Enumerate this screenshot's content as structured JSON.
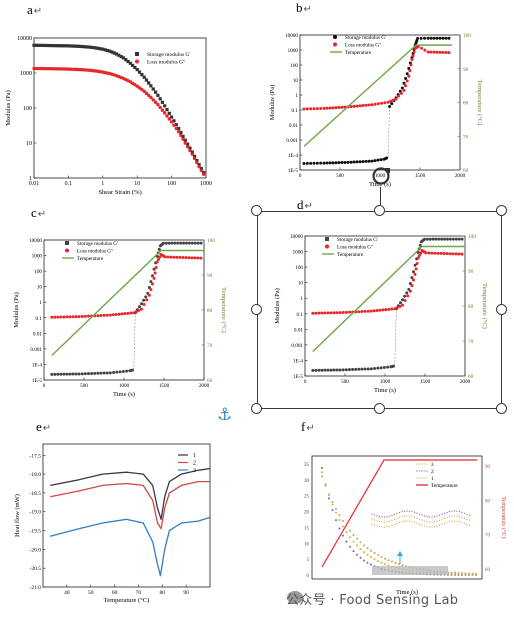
{
  "panels": {
    "a": {
      "label": "a"
    },
    "b": {
      "label": "b"
    },
    "c": {
      "label": "c"
    },
    "d": {
      "label": "d"
    },
    "e": {
      "label": "e"
    },
    "f": {
      "label": "f"
    }
  },
  "return_mark": "↵",
  "watermark": "公众号 · Food Sensing Lab",
  "chart_data": [
    {
      "id": "a",
      "type": "scatter",
      "xlabel": "Shear Strain (%)",
      "ylabel": "Modulus (Pa)",
      "xscale": "log",
      "yscale": "log",
      "xlim": [
        0.01,
        1000
      ],
      "ylim": [
        1,
        10000
      ],
      "xticks": [
        "0.01",
        "0.1",
        "1",
        "10",
        "100",
        "1000"
      ],
      "yticks": [
        "1",
        "10",
        "100",
        "1000",
        "10000"
      ],
      "legend": "top-right",
      "series": [
        {
          "name": "Storage modulus G'",
          "color": "#333333",
          "marker": "square",
          "points": [
            [
              0.01,
              6200
            ],
            [
              0.016,
              6150
            ],
            [
              0.025,
              6100
            ],
            [
              0.04,
              6050
            ],
            [
              0.063,
              6000
            ],
            [
              0.1,
              5950
            ],
            [
              0.16,
              5850
            ],
            [
              0.25,
              5700
            ],
            [
              0.4,
              5500
            ],
            [
              0.63,
              5200
            ],
            [
              1,
              4800
            ],
            [
              1.6,
              4200
            ],
            [
              2.5,
              3500
            ],
            [
              4,
              2700
            ],
            [
              6.3,
              1900
            ],
            [
              10,
              1250
            ],
            [
              16,
              760
            ],
            [
              25,
              430
            ],
            [
              40,
              230
            ],
            [
              63,
              115
            ],
            [
              100,
              55
            ],
            [
              160,
              26
            ],
            [
              250,
              12
            ],
            [
              400,
              5.5
            ],
            [
              630,
              2.4
            ],
            [
              1000,
              1.1
            ]
          ]
        },
        {
          "name": "Loss modulus G''",
          "color": "#e8262b",
          "marker": "circle",
          "points": [
            [
              0.01,
              1350
            ],
            [
              0.016,
              1340
            ],
            [
              0.025,
              1330
            ],
            [
              0.04,
              1320
            ],
            [
              0.063,
              1310
            ],
            [
              0.1,
              1290
            ],
            [
              0.16,
              1270
            ],
            [
              0.25,
              1240
            ],
            [
              0.4,
              1200
            ],
            [
              0.63,
              1140
            ],
            [
              1,
              1060
            ],
            [
              1.6,
              960
            ],
            [
              2.5,
              840
            ],
            [
              4,
              700
            ],
            [
              6.3,
              560
            ],
            [
              10,
              420
            ],
            [
              16,
              300
            ],
            [
              25,
              200
            ],
            [
              40,
              125
            ],
            [
              63,
              72
            ],
            [
              100,
              40
            ],
            [
              160,
              21
            ],
            [
              250,
              10
            ],
            [
              400,
              4.8
            ],
            [
              630,
              2.1
            ],
            [
              1000,
              1
            ]
          ]
        }
      ]
    },
    {
      "id": "b",
      "type": "line",
      "xlabel": "Time (s)",
      "ylabel": "Modulus (Pa)",
      "y2label": "Temperature (°C)",
      "xlim": [
        0,
        2000
      ],
      "xticks": [
        "0",
        "500",
        "1000",
        "1500",
        "2000"
      ],
      "yticks": [
        "1E-5",
        "1E-4",
        "0.001",
        "0.01",
        "0.1",
        "1",
        "10",
        "100",
        "1000",
        "10000"
      ],
      "ytick_display": [
        "1E-5",
        "1E-4",
        "0.001",
        "0.01",
        "0.1",
        "1",
        "10",
        "100",
        "1000",
        "10000"
      ],
      "y2ticks": [
        "60",
        "70",
        "80",
        "90",
        "100"
      ],
      "y2lim": [
        60,
        100
      ],
      "legend": "top-left",
      "series": [
        {
          "name": "Storage modulus G'",
          "color": "#111111",
          "points": [
            [
              50,
              1.5e-05
            ],
            [
              300,
              1.6e-05
            ],
            [
              600,
              1.8e-05
            ],
            [
              900,
              2.2e-05
            ],
            [
              1050,
              3e-05
            ],
            [
              1100,
              4e-05
            ],
            [
              1120,
              0.15
            ],
            [
              1200,
              0.6
            ],
            [
              1280,
              3
            ],
            [
              1340,
              30
            ],
            [
              1400,
              400
            ],
            [
              1440,
              3000
            ],
            [
              1470,
              9000
            ],
            [
              1600,
              9300
            ],
            [
              1900,
              9300
            ]
          ]
        },
        {
          "name": "Loss modulus G''",
          "color": "#e8262b",
          "points": [
            [
              50,
              0.1
            ],
            [
              300,
              0.11
            ],
            [
              600,
              0.14
            ],
            [
              900,
              0.2
            ],
            [
              1100,
              0.3
            ],
            [
              1200,
              0.5
            ],
            [
              1300,
              2
            ],
            [
              1360,
              20
            ],
            [
              1400,
              300
            ],
            [
              1440,
              1800
            ],
            [
              1480,
              2500
            ],
            [
              1600,
              1000
            ],
            [
              1900,
              900
            ]
          ]
        },
        {
          "name": "Temperature",
          "color": "#6aa84f",
          "points": [
            [
              50,
              67
            ],
            [
              1450,
              97
            ],
            [
              1900,
              97
            ]
          ]
        }
      ]
    },
    {
      "id": "c",
      "type": "line",
      "xlabel": "Time (s)",
      "ylabel": "Modulus (Pa)",
      "y2label": "Temperature (°C)",
      "xticks": [
        "0",
        "500",
        "1000",
        "1500",
        "2000"
      ],
      "yticks": [
        "1E-5",
        "1E-4",
        "0.001",
        "0.01",
        "0.1",
        "1",
        "10",
        "100",
        "1000",
        "10000"
      ],
      "y2ticks": [
        "60",
        "70",
        "80",
        "90",
        "100"
      ],
      "legend": "top-left",
      "series": [
        {
          "name": "Storage modulus G'",
          "color": "#444444"
        },
        {
          "name": "Loss modulus G''",
          "color": "#e8262b"
        },
        {
          "name": "Temperature",
          "color": "#6aa84f"
        }
      ]
    },
    {
      "id": "d",
      "type": "line",
      "xlabel": "Time (s)",
      "ylabel": "Modulus (Pa)",
      "y2label": "Temperature (°C)",
      "xticks": [
        "0",
        "500",
        "1000",
        "1500",
        "2000"
      ],
      "yticks": [
        "1E-5",
        "1E-4",
        "0.001",
        "0.01",
        "0.1",
        "1",
        "10",
        "100",
        "1000",
        "10000"
      ],
      "y2ticks": [
        "60",
        "70",
        "80",
        "90",
        "100"
      ],
      "legend": "top-left",
      "series": [
        {
          "name": "Storage modulus G'",
          "color": "#444444"
        },
        {
          "name": "Loss modulus G''",
          "color": "#e8262b"
        },
        {
          "name": "Temperature",
          "color": "#6aa84f"
        }
      ]
    },
    {
      "id": "e",
      "type": "line",
      "xlabel": "Temperature (°C)",
      "ylabel": "Heat flow (mW)",
      "xlim": [
        30,
        100
      ],
      "ylim": [
        -21.0,
        -17.2
      ],
      "xticks": [
        "40",
        "50",
        "60",
        "70",
        "80",
        "90"
      ],
      "yticks": [
        "-17.5",
        "-18.0",
        "-18.5",
        "-19.0",
        "-19.5",
        "-20.0",
        "-20.5",
        "-21.0"
      ],
      "legend": "top-right",
      "series": [
        {
          "name": "1",
          "color": "#3a3a3a",
          "points": [
            [
              33,
              -18.3
            ],
            [
              45,
              -18.15
            ],
            [
              55,
              -18.0
            ],
            [
              65,
              -17.95
            ],
            [
              72,
              -18.0
            ],
            [
              76,
              -18.3
            ],
            [
              78,
              -18.9
            ],
            [
              79.5,
              -19.2
            ],
            [
              81,
              -18.6
            ],
            [
              83,
              -18.2
            ],
            [
              88,
              -18.0
            ],
            [
              95,
              -17.9
            ],
            [
              100,
              -17.85
            ]
          ]
        },
        {
          "name": "2",
          "color": "#d64545",
          "points": [
            [
              33,
              -18.6
            ],
            [
              45,
              -18.45
            ],
            [
              55,
              -18.3
            ],
            [
              65,
              -18.25
            ],
            [
              72,
              -18.3
            ],
            [
              76,
              -18.7
            ],
            [
              78,
              -19.3
            ],
            [
              79.5,
              -19.45
            ],
            [
              81,
              -18.9
            ],
            [
              83,
              -18.5
            ],
            [
              88,
              -18.3
            ],
            [
              95,
              -18.2
            ],
            [
              100,
              -18.2
            ]
          ]
        },
        {
          "name": "3",
          "color": "#2f7ec7",
          "points": [
            [
              33,
              -19.65
            ],
            [
              45,
              -19.45
            ],
            [
              55,
              -19.3
            ],
            [
              65,
              -19.2
            ],
            [
              72,
              -19.3
            ],
            [
              76,
              -19.8
            ],
            [
              78,
              -20.4
            ],
            [
              79.2,
              -20.7
            ],
            [
              81,
              -20.0
            ],
            [
              83,
              -19.5
            ],
            [
              88,
              -19.3
            ],
            [
              95,
              -19.25
            ],
            [
              100,
              -19.15
            ]
          ]
        }
      ]
    },
    {
      "id": "f",
      "type": "line",
      "xlabel": "Time (s)",
      "ylabel": "",
      "y2label": "Temperature (°C)",
      "yticks": [
        "0",
        "5",
        "10",
        "15",
        "20",
        "25",
        "30",
        "35"
      ],
      "y2ticks": [
        "60",
        "70",
        "80",
        "90"
      ],
      "legend": "top-right",
      "series": [
        {
          "name": "3",
          "color": "#d4b23a"
        },
        {
          "name": "2",
          "color": "#7a5fb0"
        },
        {
          "name": "1",
          "color": "#c9a25a"
        },
        {
          "name": "Temperature",
          "color": "#e8262b"
        }
      ]
    }
  ]
}
